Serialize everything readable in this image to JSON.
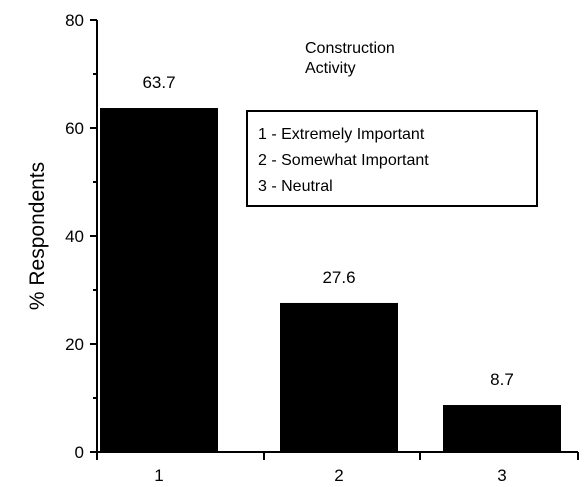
{
  "chart_data": {
    "type": "bar",
    "title_lines": [
      "Construction",
      "Activity"
    ],
    "xlabel": "",
    "ylabel": "% Respondents",
    "categories": [
      "1",
      "2",
      "3"
    ],
    "values": [
      63.7,
      27.6,
      8.7
    ],
    "data_labels": [
      "63.7",
      "27.6",
      "8.7"
    ],
    "ylim": [
      0,
      80
    ],
    "yticks": [
      0,
      20,
      40,
      60,
      80
    ],
    "grid": false,
    "legend_position": "top-right",
    "legend": [
      "1 - Extremely Important",
      "2 - Somewhat Important",
      "3 - Neutral"
    ],
    "bar_color": "#000000"
  }
}
